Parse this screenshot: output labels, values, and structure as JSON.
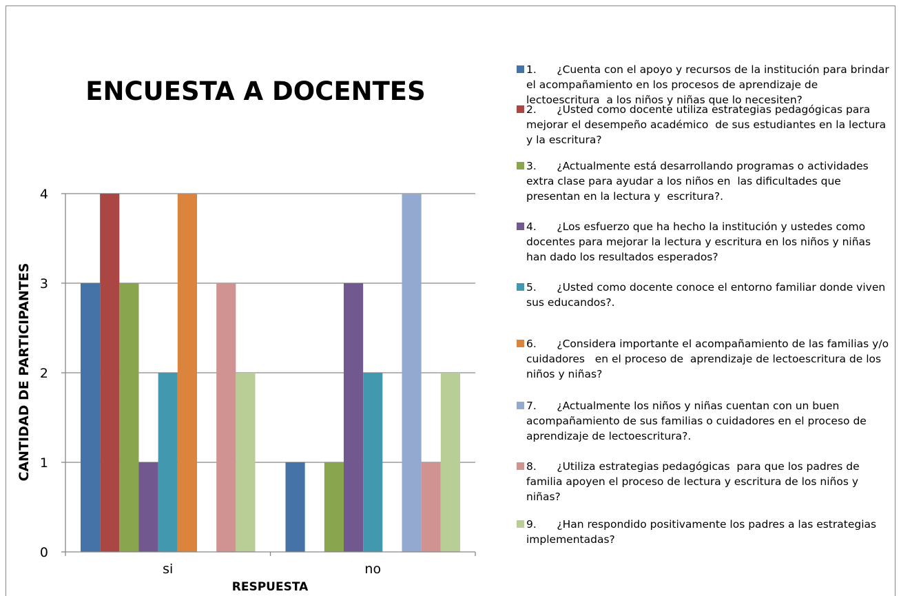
{
  "chart_data": {
    "type": "bar",
    "title": "ENCUESTA A DOCENTES",
    "x_label": "RESPUESTA",
    "y_label": "CANTIDAD DE PARTICIPANTES",
    "categories": [
      "si",
      "no"
    ],
    "ylim": [
      0,
      4
    ],
    "yticks": [
      0,
      1,
      2,
      3,
      4
    ],
    "grid": true,
    "legend": "right",
    "series": [
      {
        "name": "1.      ¿Cuenta con el apoyo y recursos de la institución para brindar el acompañamiento en los procesos de aprendizaje de lectoescritura  a los niños y niñas que lo necesiten?",
        "color": "#4572a7",
        "values": [
          3,
          1
        ]
      },
      {
        "name": "2.      ¿Usted como docente utiliza estrategias pedagógicas para mejorar el desempeño académico  de sus estudiantes en la lectura y la escritura?",
        "color": "#aa4643",
        "values": [
          4,
          0
        ]
      },
      {
        "name": "3.      ¿Actualmente está desarrollando programas o actividades extra clase para ayudar a los niños en  las dificultades que presentan en la lectura y  escritura?.",
        "color": "#89a54e",
        "values": [
          3,
          1
        ]
      },
      {
        "name": "4.      ¿Los esfuerzo que ha hecho la institución y ustedes como docentes para mejorar la lectura y escritura en los niños y niñas han dado los resultados esperados?",
        "color": "#71588f",
        "values": [
          1,
          3
        ]
      },
      {
        "name": "5.      ¿Usted como docente conoce el entorno familiar donde viven sus educandos?.",
        "color": "#4198af",
        "values": [
          2,
          2
        ]
      },
      {
        "name": "6.      ¿Considera importante el acompañamiento de las familias y/o cuidadores   en el proceso de  aprendizaje de lectoescritura de los niños y niñas?",
        "color": "#db843d",
        "values": [
          4,
          0
        ]
      },
      {
        "name": "7.      ¿Actualmente los niños y niñas cuentan con un buen acompañamiento de sus familias o cuidadores en el proceso de  aprendizaje de lectoescritura?.",
        "color": "#93a9cf",
        "values": [
          0,
          4
        ]
      },
      {
        "name": "8.      ¿Utiliza estrategias pedagógicas  para que los padres de familia apoyen el proceso de lectura y escritura de los niños y niñas?",
        "color": "#d19392",
        "values": [
          3,
          1
        ]
      },
      {
        "name": "9.      ¿Han respondido positivamente los padres a las estrategias implementadas?",
        "color": "#b9cd96",
        "values": [
          2,
          2
        ]
      }
    ]
  }
}
